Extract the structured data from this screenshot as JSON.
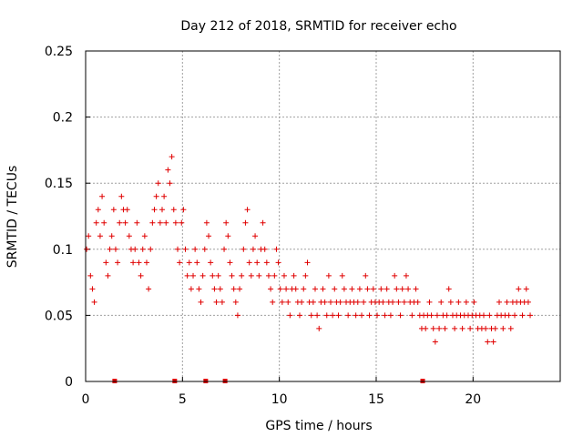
{
  "chart_data": {
    "type": "scatter",
    "title": "Day 212 of 2018, SRMTID for receiver echo",
    "xlabel": "GPS time / hours",
    "ylabel": "SRMTID / TECUs",
    "xlim": [
      0,
      24.5
    ],
    "ylim": [
      0,
      0.25
    ],
    "x_ticks": [
      "0",
      "5",
      "10",
      "15",
      "20"
    ],
    "x_tick_values": [
      0,
      5,
      10,
      15,
      20
    ],
    "y_ticks": [
      "0",
      "0.05",
      "0.1",
      "0.15",
      "0.2",
      "0.25"
    ],
    "y_tick_values": [
      0,
      0.05,
      0.1,
      0.15,
      0.2,
      0.25
    ],
    "grid": true,
    "marker": "+",
    "color": "#e00000",
    "series": [
      {
        "name": "SRMTID",
        "x": [
          0.05,
          0.15,
          0.25,
          0.35,
          0.45,
          0.55,
          0.65,
          0.75,
          0.85,
          0.95,
          1.05,
          1.15,
          1.25,
          1.35,
          1.45,
          1.55,
          1.65,
          1.75,
          1.85,
          1.95,
          2.05,
          2.15,
          2.25,
          2.35,
          2.45,
          2.55,
          2.65,
          2.75,
          2.85,
          2.95,
          3.05,
          3.15,
          3.25,
          3.35,
          3.45,
          3.55,
          3.65,
          3.75,
          3.85,
          3.95,
          4.05,
          4.15,
          4.25,
          4.35,
          4.45,
          4.55,
          4.65,
          4.75,
          4.85,
          4.95,
          5.05,
          5.15,
          5.25,
          5.35,
          5.45,
          5.55,
          5.65,
          5.75,
          5.85,
          5.95,
          6.05,
          6.15,
          6.25,
          6.35,
          6.45,
          6.55,
          6.65,
          6.75,
          6.85,
          6.95,
          7.05,
          7.15,
          7.25,
          7.35,
          7.45,
          7.55,
          7.65,
          7.75,
          7.85,
          7.95,
          8.05,
          8.15,
          8.25,
          8.35,
          8.45,
          8.55,
          8.65,
          8.75,
          8.85,
          8.95,
          9.05,
          9.15,
          9.25,
          9.35,
          9.45,
          9.55,
          9.65,
          9.75,
          9.85,
          9.95,
          10.05,
          10.15,
          10.25,
          10.35,
          10.45,
          10.55,
          10.65,
          10.75,
          10.85,
          10.95,
          11.05,
          11.15,
          11.25,
          11.35,
          11.45,
          11.55,
          11.65,
          11.75,
          11.85,
          11.95,
          12.05,
          12.15,
          12.25,
          12.35,
          12.45,
          12.55,
          12.65,
          12.75,
          12.85,
          12.95,
          13.05,
          13.15,
          13.25,
          13.35,
          13.45,
          13.55,
          13.65,
          13.75,
          13.85,
          13.95,
          14.05,
          14.15,
          14.25,
          14.35,
          14.45,
          14.55,
          14.65,
          14.75,
          14.85,
          14.95,
          15.05,
          15.15,
          15.25,
          15.35,
          15.45,
          15.55,
          15.65,
          15.75,
          15.85,
          15.95,
          16.05,
          16.15,
          16.25,
          16.35,
          16.45,
          16.55,
          16.65,
          16.75,
          16.85,
          16.95,
          17.05,
          17.15,
          17.25,
          17.35,
          17.45,
          17.55,
          17.65,
          17.75,
          17.85,
          17.95,
          18.05,
          18.15,
          18.25,
          18.35,
          18.45,
          18.55,
          18.65,
          18.75,
          18.85,
          18.95,
          19.05,
          19.15,
          19.25,
          19.35,
          19.45,
          19.55,
          19.65,
          19.75,
          19.85,
          19.95,
          20.05,
          20.15,
          20.25,
          20.35,
          20.45,
          20.55,
          20.65,
          20.75,
          20.85,
          20.95,
          21.05,
          21.15,
          21.25,
          21.35,
          21.45,
          21.55,
          21.65,
          21.75,
          21.85,
          21.95,
          22.05,
          22.15,
          22.25,
          22.35,
          22.45,
          22.55,
          22.65,
          22.75,
          22.85,
          22.95
        ],
        "y": [
          0.1,
          0.11,
          0.08,
          0.07,
          0.06,
          0.12,
          0.13,
          0.11,
          0.14,
          0.12,
          0.09,
          0.08,
          0.1,
          0.11,
          0.13,
          0.1,
          0.09,
          0.12,
          0.14,
          0.13,
          0.12,
          0.13,
          0.11,
          0.1,
          0.09,
          0.1,
          0.12,
          0.09,
          0.08,
          0.1,
          0.11,
          0.09,
          0.07,
          0.1,
          0.12,
          0.13,
          0.14,
          0.15,
          0.12,
          0.13,
          0.14,
          0.12,
          0.16,
          0.15,
          0.17,
          0.13,
          0.12,
          0.1,
          0.09,
          0.12,
          0.13,
          0.1,
          0.08,
          0.09,
          0.07,
          0.08,
          0.1,
          0.09,
          0.07,
          0.06,
          0.08,
          0.1,
          0.12,
          0.11,
          0.09,
          0.08,
          0.07,
          0.06,
          0.08,
          0.07,
          0.06,
          0.1,
          0.12,
          0.11,
          0.09,
          0.08,
          0.07,
          0.06,
          0.05,
          0.07,
          0.08,
          0.1,
          0.12,
          0.13,
          0.09,
          0.08,
          0.1,
          0.11,
          0.09,
          0.08,
          0.1,
          0.12,
          0.1,
          0.09,
          0.08,
          0.07,
          0.06,
          0.08,
          0.1,
          0.09,
          0.07,
          0.06,
          0.08,
          0.07,
          0.06,
          0.05,
          0.07,
          0.08,
          0.07,
          0.06,
          0.05,
          0.06,
          0.07,
          0.08,
          0.09,
          0.06,
          0.05,
          0.06,
          0.07,
          0.05,
          0.04,
          0.06,
          0.07,
          0.06,
          0.05,
          0.08,
          0.06,
          0.05,
          0.07,
          0.06,
          0.05,
          0.06,
          0.08,
          0.07,
          0.06,
          0.05,
          0.06,
          0.07,
          0.06,
          0.05,
          0.06,
          0.07,
          0.05,
          0.06,
          0.08,
          0.07,
          0.05,
          0.06,
          0.07,
          0.06,
          0.05,
          0.06,
          0.07,
          0.06,
          0.05,
          0.07,
          0.06,
          0.05,
          0.06,
          0.08,
          0.07,
          0.06,
          0.05,
          0.07,
          0.06,
          0.08,
          0.07,
          0.06,
          0.05,
          0.06,
          0.07,
          0.06,
          0.05,
          0.04,
          0.05,
          0.04,
          0.05,
          0.06,
          0.05,
          0.04,
          0.03,
          0.05,
          0.04,
          0.06,
          0.05,
          0.04,
          0.05,
          0.07,
          0.06,
          0.05,
          0.04,
          0.05,
          0.06,
          0.05,
          0.04,
          0.05,
          0.06,
          0.05,
          0.04,
          0.05,
          0.06,
          0.05,
          0.04,
          0.05,
          0.04,
          0.05,
          0.04,
          0.03,
          0.05,
          0.04,
          0.03,
          0.04,
          0.05,
          0.06,
          0.05,
          0.04,
          0.05,
          0.06,
          0.05,
          0.04,
          0.06,
          0.05,
          0.06,
          0.07,
          0.06,
          0.05,
          0.06,
          0.07,
          0.06,
          0.05
        ]
      }
    ],
    "data_gaps_x": [
      1.5,
      4.6,
      6.2,
      7.2,
      17.4
    ]
  }
}
